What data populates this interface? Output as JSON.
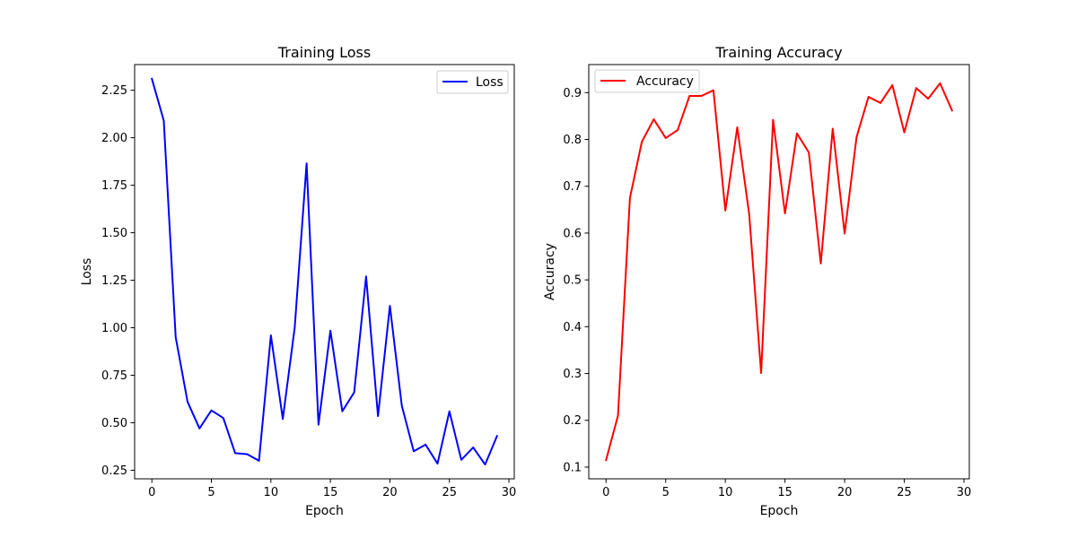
{
  "chart_data": [
    {
      "type": "line",
      "title": "Training Loss",
      "xlabel": "Epoch",
      "ylabel": "Loss",
      "xlim": [
        -1.45,
        30.45
      ],
      "ylim": [
        0.205,
        2.385
      ],
      "xticks": [
        0,
        5,
        10,
        15,
        20,
        25,
        30
      ],
      "xtick_labels": [
        "0",
        "5",
        "10",
        "15",
        "20",
        "25",
        "30"
      ],
      "yticks": [
        0.25,
        0.5,
        0.75,
        1.0,
        1.25,
        1.5,
        1.75,
        2.0,
        2.25
      ],
      "ytick_labels": [
        "0.25",
        "0.50",
        "0.75",
        "1.00",
        "1.25",
        "1.50",
        "1.75",
        "2.00",
        "2.25"
      ],
      "grid": false,
      "legend_position": "top-right",
      "x": [
        0,
        1,
        2,
        3,
        4,
        5,
        6,
        7,
        8,
        9,
        10,
        11,
        12,
        13,
        14,
        15,
        16,
        17,
        18,
        19,
        20,
        21,
        22,
        23,
        24,
        25,
        26,
        27,
        28,
        29
      ],
      "series": [
        {
          "name": "Loss",
          "color": "#0000ff",
          "values": [
            2.31,
            2.09,
            0.95,
            0.61,
            0.47,
            0.565,
            0.525,
            0.34,
            0.335,
            0.3,
            0.96,
            0.52,
            1.0,
            1.865,
            0.49,
            0.985,
            0.56,
            0.66,
            1.27,
            0.535,
            1.115,
            0.59,
            0.35,
            0.385,
            0.285,
            0.56,
            0.305,
            0.37,
            0.28,
            0.43
          ]
        }
      ]
    },
    {
      "type": "line",
      "title": "Training Accuracy",
      "xlabel": "Epoch",
      "ylabel": "Accuracy",
      "xlim": [
        -1.45,
        30.45
      ],
      "ylim": [
        0.075,
        0.96
      ],
      "xticks": [
        0,
        5,
        10,
        15,
        20,
        25,
        30
      ],
      "xtick_labels": [
        "0",
        "5",
        "10",
        "15",
        "20",
        "25",
        "30"
      ],
      "yticks": [
        0.1,
        0.2,
        0.3,
        0.4,
        0.5,
        0.6,
        0.7,
        0.8,
        0.9
      ],
      "ytick_labels": [
        "0.1",
        "0.2",
        "0.3",
        "0.4",
        "0.5",
        "0.6",
        "0.7",
        "0.8",
        "0.9"
      ],
      "grid": false,
      "legend_position": "top-left",
      "x": [
        0,
        1,
        2,
        3,
        4,
        5,
        6,
        7,
        8,
        9,
        10,
        11,
        12,
        13,
        14,
        15,
        16,
        17,
        18,
        19,
        20,
        21,
        22,
        23,
        24,
        25,
        26,
        27,
        28,
        29
      ],
      "series": [
        {
          "name": "Accuracy",
          "color": "#ff0000",
          "values": [
            0.115,
            0.21,
            0.675,
            0.795,
            0.843,
            0.803,
            0.82,
            0.893,
            0.893,
            0.905,
            0.648,
            0.826,
            0.64,
            0.301,
            0.842,
            0.642,
            0.813,
            0.772,
            0.535,
            0.823,
            0.599,
            0.805,
            0.891,
            0.878,
            0.916,
            0.815,
            0.91,
            0.887,
            0.92,
            0.862
          ]
        }
      ]
    }
  ]
}
